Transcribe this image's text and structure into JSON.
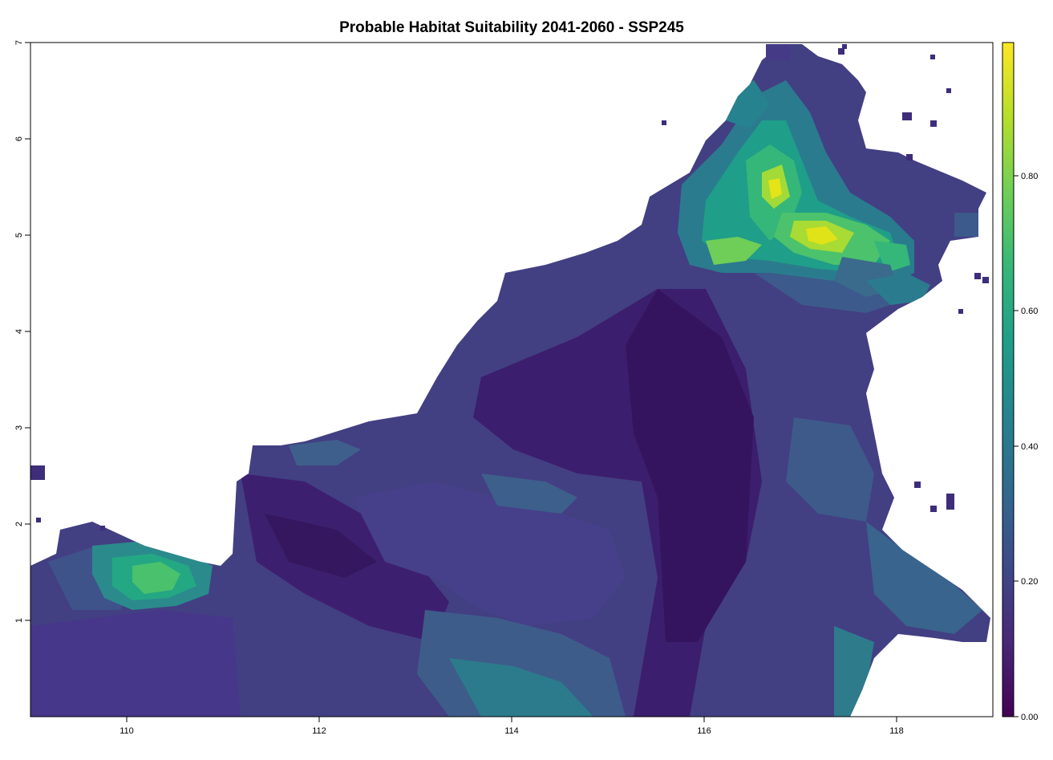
{
  "title": "Probable Habitat Suitability 2041-2060 - SSP245",
  "x_axis": {
    "range": [
      109,
      119
    ],
    "ticks": [
      "110",
      "112",
      "114",
      "116",
      "118"
    ]
  },
  "y_axis": {
    "range": [
      0,
      7
    ],
    "ticks": [
      "1",
      "2",
      "3",
      "4",
      "5",
      "6",
      "7"
    ]
  },
  "legend": {
    "type": "continuous colorbar",
    "position": "right",
    "range": [
      0,
      1
    ],
    "ticks": [
      "0.00",
      "0.20",
      "0.40",
      "0.60",
      "0.80"
    ],
    "colormap": "viridis"
  },
  "colors": {
    "viridis_stops": [
      "#440154",
      "#482878",
      "#3e4989",
      "#31688e",
      "#26828e",
      "#1f9e89",
      "#35b779",
      "#6ece58",
      "#b5de2b",
      "#fde725"
    ],
    "background": "#ffffff"
  }
}
